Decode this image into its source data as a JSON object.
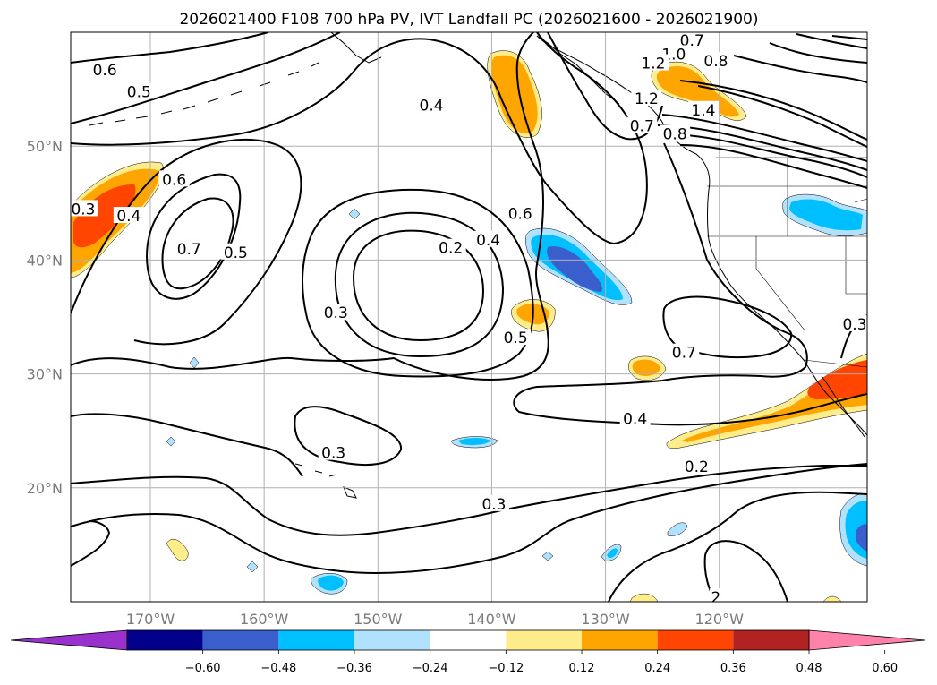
{
  "title": "2026021400 F108 700 hPa PV, IVT Landfall PC (2026021600 - 2026021900)",
  "map": {
    "projection": "equirectangular",
    "lon_range": [
      -177,
      -107
    ],
    "lat_range": [
      10,
      60
    ],
    "longitude_ticks": [
      {
        "lon": -170,
        "label": "170°W"
      },
      {
        "lon": -160,
        "label": "160°W"
      },
      {
        "lon": -150,
        "label": "150°W"
      },
      {
        "lon": -140,
        "label": "140°W"
      },
      {
        "lon": -130,
        "label": "130°W"
      },
      {
        "lon": -120,
        "label": "120°W"
      }
    ],
    "latitude_ticks": [
      {
        "lat": 50,
        "label": "50°N"
      },
      {
        "lat": 40,
        "label": "40°N"
      },
      {
        "lat": 30,
        "label": "30°N"
      },
      {
        "lat": 20,
        "label": "20°N"
      }
    ]
  },
  "contour_labels": [
    {
      "text": "0.6",
      "lon": -174.0,
      "lat": 56.6
    },
    {
      "text": "0.5",
      "lon": -171.0,
      "lat": 54.7
    },
    {
      "text": "0.4",
      "lon": -145.3,
      "lat": 53.5
    },
    {
      "text": "0.7",
      "lon": -122.4,
      "lat": 59.2
    },
    {
      "text": "1.0",
      "lon": -124.0,
      "lat": 58.0
    },
    {
      "text": "0.8",
      "lon": -120.3,
      "lat": 57.4
    },
    {
      "text": "1.2",
      "lon": -125.8,
      "lat": 57.2
    },
    {
      "text": "1.2",
      "lon": -126.4,
      "lat": 54.1
    },
    {
      "text": "1.4",
      "lon": -121.4,
      "lat": 53.1
    },
    {
      "text": "0.7",
      "lon": -126.8,
      "lat": 51.7
    },
    {
      "text": "0.8",
      "lon": -123.9,
      "lat": 51.0
    },
    {
      "text": "0.3",
      "lon": -175.9,
      "lat": 44.4
    },
    {
      "text": "0.4",
      "lon": -171.9,
      "lat": 43.8
    },
    {
      "text": "0.6",
      "lon": -167.9,
      "lat": 47.0
    },
    {
      "text": "0.7",
      "lon": -166.6,
      "lat": 40.9
    },
    {
      "text": "0.5",
      "lon": -162.5,
      "lat": 40.6
    },
    {
      "text": "0.2",
      "lon": -143.6,
      "lat": 41.0
    },
    {
      "text": "0.4",
      "lon": -140.3,
      "lat": 41.7
    },
    {
      "text": "0.6",
      "lon": -137.5,
      "lat": 44.0
    },
    {
      "text": "0.3",
      "lon": -153.7,
      "lat": 35.3
    },
    {
      "text": "0.5",
      "lon": -137.9,
      "lat": 33.1
    },
    {
      "text": "0.7",
      "lon": -123.1,
      "lat": 31.8
    },
    {
      "text": "0.3",
      "lon": -108.1,
      "lat": 34.3
    },
    {
      "text": "0.4",
      "lon": -127.4,
      "lat": 26.0
    },
    {
      "text": "0.3",
      "lon": -153.9,
      "lat": 23.0
    },
    {
      "text": "0.2",
      "lon": -122.0,
      "lat": 21.8
    },
    {
      "text": "0.3",
      "lon": -139.8,
      "lat": 18.5
    },
    {
      "text": "2",
      "lon": -120.3,
      "lat": 10.3
    }
  ],
  "colorbar": {
    "colors": [
      "#9932cc",
      "#00008b",
      "#3a5fcd",
      "#00bfff",
      "#b0e2ff",
      "#ffffff",
      "#ffec8b",
      "#ffa500",
      "#ff4500",
      "#b22222",
      "#ff82ab"
    ],
    "ticks": [
      "−0.60",
      "−0.48",
      "−0.36",
      "−0.24",
      "−0.12",
      "0.12",
      "0.24",
      "0.36",
      "0.48",
      "0.60"
    ],
    "extend": "both"
  }
}
